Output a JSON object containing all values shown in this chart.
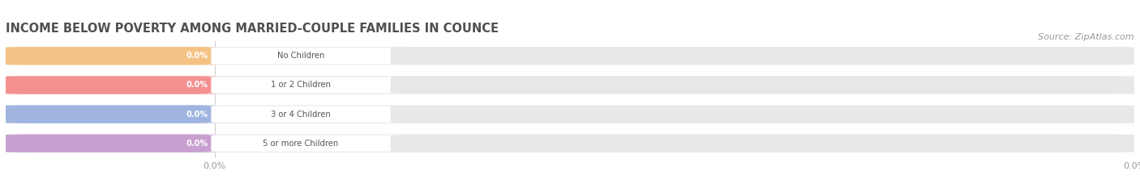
{
  "title": "INCOME BELOW POVERTY AMONG MARRIED-COUPLE FAMILIES IN COUNCE",
  "source": "Source: ZipAtlas.com",
  "categories": [
    "No Children",
    "1 or 2 Children",
    "3 or 4 Children",
    "5 or more Children"
  ],
  "values": [
    0.0,
    0.0,
    0.0,
    0.0
  ],
  "bar_colors_actual": [
    "#f5c285",
    "#f59090",
    "#a0b4e0",
    "#c8a0d0"
  ],
  "bar_bg_color": "#e8e8e8",
  "background_color": "#ffffff",
  "title_color": "#505050",
  "source_color": "#999999",
  "figsize": [
    14.06,
    2.33
  ],
  "dpi": 100,
  "bar_height": 0.62,
  "colored_bar_width": 0.185,
  "grid_color": "#d0d0d0",
  "tick_label_color": "#999999",
  "cat_label_color": "#555555",
  "val_label_color": "#ffffff",
  "white_inner_color": "#ffffff"
}
